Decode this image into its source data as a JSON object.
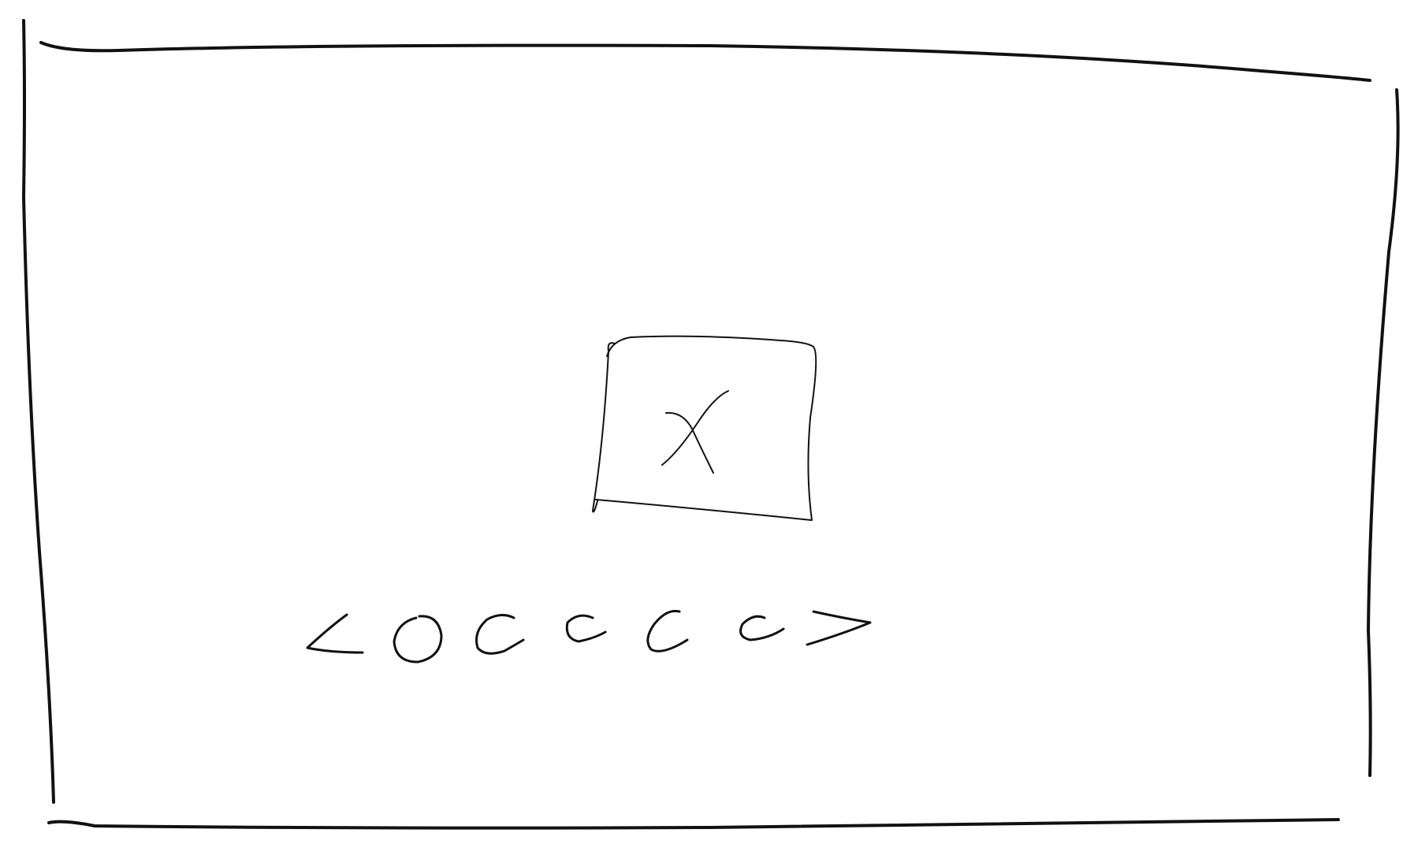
{
  "colors": {
    "ink": "#111111",
    "background": "#ffffff"
  },
  "wireframe": {
    "frame": "screen-frame",
    "media": {
      "placeholder": "image-placeholder",
      "icon": "cross-icon"
    },
    "carousel": {
      "prev_icon": "chevron-left-icon",
      "next_icon": "chevron-right-icon",
      "dot_count": 5,
      "active_index": 0
    }
  }
}
